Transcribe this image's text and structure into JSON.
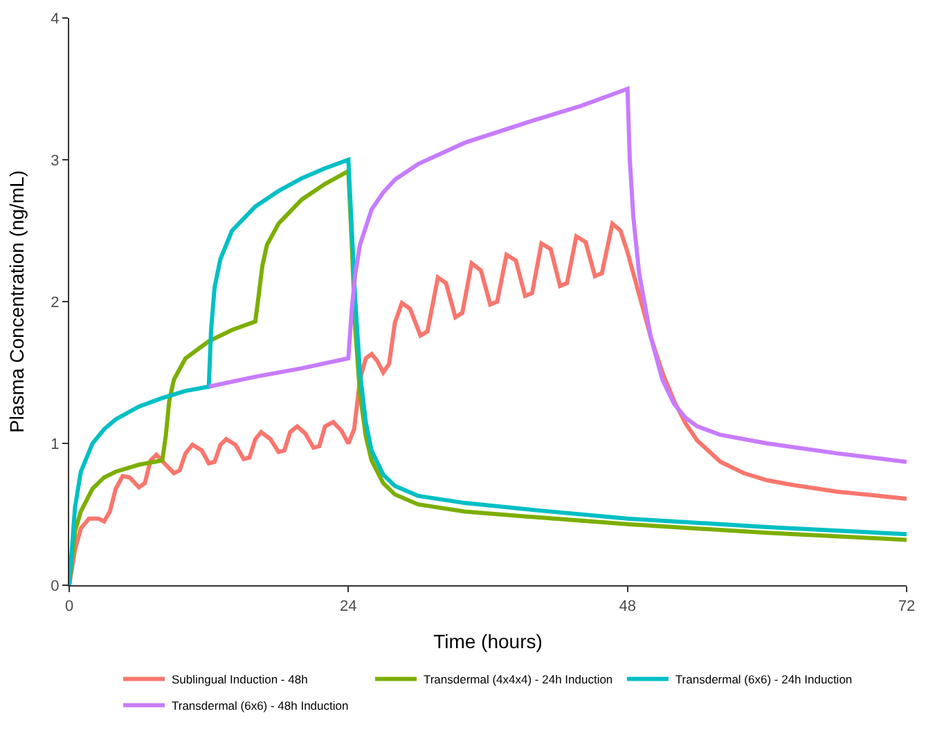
{
  "chart_data": {
    "type": "line",
    "xlabel": "Time (hours)",
    "ylabel": "Plasma Concentration (ng/mL)",
    "xlim": [
      0,
      72
    ],
    "xticks": [
      0,
      24,
      48,
      72
    ],
    "ylim": [
      0,
      4
    ],
    "yticks": [
      0,
      1,
      2,
      3,
      4
    ],
    "legend": "bottom",
    "marker": "none",
    "line_style": "solid",
    "series": [
      {
        "name": "Sublingual Induction - 48h",
        "color": "#f8766d",
        "x": [
          0,
          0.5,
          1,
          1.7,
          2.5,
          3,
          3.5,
          4,
          4.6,
          5.2,
          6,
          6.5,
          7,
          7.5,
          8.3,
          9,
          9.5,
          10,
          10.6,
          11.4,
          12,
          12.5,
          13,
          13.5,
          14.3,
          15,
          15.5,
          16,
          16.5,
          17.3,
          18,
          18.5,
          19,
          19.6,
          20.3,
          21,
          21.5,
          22,
          22.7,
          23.4,
          24,
          24.5,
          25,
          25.5,
          26,
          26.5,
          27,
          27.5,
          28,
          28.6,
          29.3,
          30.2,
          30.8,
          31.7,
          32.4,
          33.2,
          33.8,
          34.6,
          35.4,
          36.2,
          36.8,
          37.6,
          38.4,
          39.2,
          39.8,
          40.6,
          41.4,
          42.2,
          42.8,
          43.6,
          44.4,
          45.2,
          45.8,
          46.7,
          47.4,
          48,
          49,
          50,
          51,
          52,
          53,
          54,
          56,
          58,
          60,
          62,
          66,
          72
        ],
        "values": [
          0,
          0.25,
          0.4,
          0.47,
          0.47,
          0.45,
          0.52,
          0.68,
          0.77,
          0.76,
          0.69,
          0.72,
          0.88,
          0.92,
          0.85,
          0.79,
          0.81,
          0.93,
          0.99,
          0.95,
          0.86,
          0.87,
          0.99,
          1.03,
          0.99,
          0.89,
          0.9,
          1.03,
          1.08,
          1.03,
          0.94,
          0.95,
          1.08,
          1.12,
          1.07,
          0.97,
          0.98,
          1.12,
          1.15,
          1.09,
          1.0,
          1.1,
          1.45,
          1.6,
          1.63,
          1.58,
          1.5,
          1.56,
          1.85,
          1.99,
          1.95,
          1.76,
          1.79,
          2.17,
          2.13,
          1.89,
          1.92,
          2.27,
          2.22,
          1.98,
          2.0,
          2.33,
          2.29,
          2.04,
          2.06,
          2.41,
          2.37,
          2.11,
          2.13,
          2.46,
          2.42,
          2.18,
          2.2,
          2.55,
          2.5,
          2.35,
          2.05,
          1.75,
          1.5,
          1.3,
          1.14,
          1.02,
          0.87,
          0.79,
          0.74,
          0.71,
          0.66,
          0.61
        ]
      },
      {
        "name": "Transdermal (4x4x4) - 24h Induction",
        "color": "#7cae00",
        "x": [
          0,
          0.5,
          1,
          2,
          3,
          4,
          6,
          8,
          8.3,
          8.6,
          9,
          10,
          12,
          14,
          16,
          16.3,
          16.6,
          17,
          18,
          20,
          22,
          24,
          24.3,
          24.6,
          25,
          25.5,
          26,
          27,
          28,
          30,
          34,
          40,
          48,
          60,
          72
        ],
        "values": [
          0,
          0.38,
          0.52,
          0.68,
          0.76,
          0.8,
          0.85,
          0.88,
          1.05,
          1.3,
          1.45,
          1.6,
          1.72,
          1.8,
          1.86,
          2.05,
          2.25,
          2.4,
          2.55,
          2.72,
          2.83,
          2.92,
          2.4,
          1.8,
          1.35,
          1.05,
          0.88,
          0.72,
          0.64,
          0.57,
          0.52,
          0.48,
          0.43,
          0.37,
          0.32
        ]
      },
      {
        "name": "Transdermal (6x6) - 24h Induction",
        "color": "#00bfc4",
        "x": [
          0,
          0.5,
          1,
          2,
          3,
          4,
          6,
          8,
          10,
          12,
          12.2,
          12.5,
          13,
          14,
          16,
          18,
          20,
          22,
          24,
          24.3,
          24.6,
          25,
          25.5,
          26,
          27,
          28,
          30,
          34,
          40,
          48,
          60,
          72
        ],
        "values": [
          0,
          0.55,
          0.8,
          1.0,
          1.1,
          1.17,
          1.26,
          1.32,
          1.37,
          1.4,
          1.8,
          2.1,
          2.3,
          2.5,
          2.67,
          2.78,
          2.87,
          2.94,
          3.0,
          2.5,
          2.0,
          1.5,
          1.15,
          0.95,
          0.78,
          0.7,
          0.63,
          0.58,
          0.53,
          0.47,
          0.41,
          0.36
        ]
      },
      {
        "name": "Transdermal (6x6) - 48h Induction",
        "color": "#c77cff",
        "x": [
          12,
          16,
          20,
          24,
          24.3,
          24.6,
          25,
          26,
          27,
          28,
          30,
          34,
          40,
          44,
          48,
          48.2,
          48.5,
          49,
          50,
          51,
          52,
          53,
          54,
          56,
          60,
          66,
          72
        ],
        "values": [
          1.4,
          1.47,
          1.53,
          1.6,
          1.95,
          2.2,
          2.4,
          2.65,
          2.77,
          2.86,
          2.97,
          3.12,
          3.28,
          3.38,
          3.5,
          3.0,
          2.6,
          2.2,
          1.75,
          1.45,
          1.28,
          1.18,
          1.12,
          1.06,
          1.0,
          0.93,
          0.87
        ]
      }
    ]
  }
}
